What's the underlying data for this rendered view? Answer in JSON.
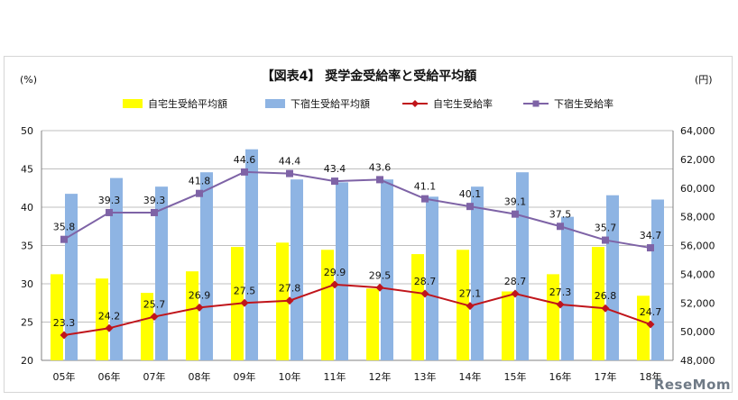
{
  "chart_data": {
    "type": "bar",
    "title": "【図表4】 奨学金受給率と受給平均額",
    "left_unit": "(%)",
    "right_unit": "(円)",
    "categories": [
      "05年",
      "06年",
      "07年",
      "08年",
      "09年",
      "10年",
      "11年",
      "12年",
      "13年",
      "14年",
      "15年",
      "16年",
      "17年",
      "18年"
    ],
    "left_axis": {
      "min": 20,
      "max": 50,
      "step": 5,
      "ticks": [
        "20",
        "25",
        "30",
        "35",
        "40",
        "45",
        "50"
      ]
    },
    "right_axis": {
      "min": 48000,
      "max": 64000,
      "step": 2000,
      "ticks": [
        "48,000",
        "50,000",
        "52,000",
        "54,000",
        "56,000",
        "58,000",
        "60,000",
        "62,000",
        "64,000"
      ]
    },
    "grid": true,
    "legend_position": "top",
    "legend": [
      {
        "label": "自宅生受給平均額",
        "kind": "bar",
        "color": "#ffff00"
      },
      {
        "label": "下宿生受給平均額",
        "kind": "bar",
        "color": "#8eb4e3"
      },
      {
        "label": "自宅生受給率",
        "kind": "line",
        "color": "#c0151b"
      },
      {
        "label": "下宿生受給率",
        "kind": "line",
        "color": "#7e63a6"
      }
    ],
    "bar_series": [
      {
        "name": "自宅生受給平均額",
        "axis": "right",
        "color": "#ffff00",
        "values": [
          54000,
          53700,
          52700,
          54200,
          55900,
          56200,
          55700,
          53000,
          55400,
          55700,
          52800,
          54000,
          55900,
          52500
        ]
      },
      {
        "name": "下宿生受給平均額",
        "axis": "right",
        "color": "#8eb4e3",
        "values": [
          59600,
          60700,
          60100,
          61100,
          62700,
          60600,
          60400,
          60600,
          59400,
          60100,
          61100,
          58000,
          59500,
          59200
        ]
      }
    ],
    "line_series": [
      {
        "name": "自宅生受給率",
        "axis": "left",
        "color": "#c0151b",
        "marker": "diamond",
        "values": [
          23.3,
          24.2,
          25.7,
          26.9,
          27.5,
          27.8,
          29.9,
          29.5,
          28.7,
          27.1,
          28.7,
          27.3,
          26.8,
          24.7
        ],
        "labels": [
          "23.3",
          "24.2",
          "25.7",
          "26.9",
          "27.5",
          "27.8",
          "29.9",
          "29.5",
          "28.7",
          "27.1",
          "28.7",
          "27.3",
          "26.8",
          "24.7"
        ]
      },
      {
        "name": "下宿生受給率",
        "axis": "left",
        "color": "#7e63a6",
        "marker": "square",
        "values": [
          35.8,
          39.3,
          39.3,
          41.8,
          44.6,
          44.4,
          43.4,
          43.6,
          41.1,
          40.1,
          39.1,
          37.5,
          35.7,
          34.7
        ],
        "labels": [
          "35.8",
          "39.3",
          "39.3",
          "41.8",
          "44.6",
          "44.4",
          "43.4",
          "43.6",
          "41.1",
          "40.1",
          "39.1",
          "37.5",
          "35.7",
          "34.7"
        ]
      }
    ]
  },
  "watermark": "ReseMom"
}
